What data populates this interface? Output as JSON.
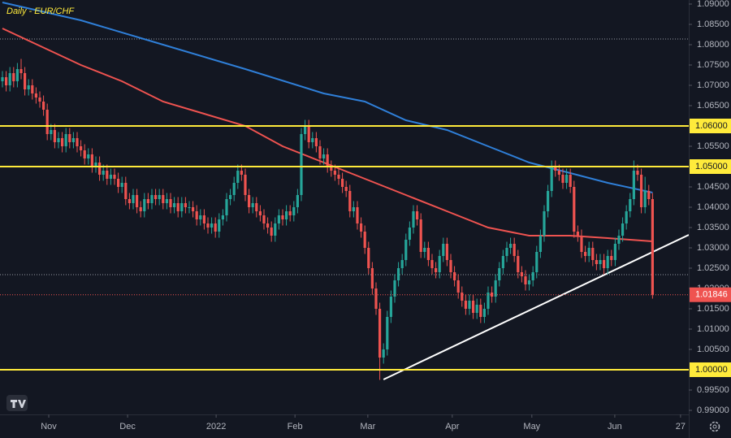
{
  "chart_data": {
    "type": "candlestick",
    "title": "Daily - EUR/CHF",
    "title_color": "#ffeb3b",
    "up_color": "#26a69a",
    "down_color": "#ef5350",
    "xlim": [
      -0.65,
      183.7
    ],
    "ylim": [
      0.989,
      1.091
    ],
    "xticks": [
      {
        "value": 12.4,
        "label": "Nov"
      },
      {
        "value": 33.5,
        "label": "Dec"
      },
      {
        "value": 57.2,
        "label": "2022"
      },
      {
        "value": 78.3,
        "label": "Feb"
      },
      {
        "value": 97.8,
        "label": "Mar"
      },
      {
        "value": 120.4,
        "label": "Apr"
      },
      {
        "value": 141.7,
        "label": "May"
      },
      {
        "value": 163.9,
        "label": "Jun"
      },
      {
        "value": 181.5,
        "label": "27"
      }
    ],
    "yticks": [
      {
        "value": 1.09,
        "label": "1.09000"
      },
      {
        "value": 1.085,
        "label": "1.08500"
      },
      {
        "value": 1.08,
        "label": "1.08000"
      },
      {
        "value": 1.075,
        "label": "1.07500"
      },
      {
        "value": 1.07,
        "label": "1.07000"
      },
      {
        "value": 1.065,
        "label": "1.06500"
      },
      {
        "value": 1.055,
        "label": "1.05500"
      },
      {
        "value": 1.045,
        "label": "1.04500"
      },
      {
        "value": 1.04,
        "label": "1.04000"
      },
      {
        "value": 1.035,
        "label": "1.03500"
      },
      {
        "value": 1.03,
        "label": "1.03000"
      },
      {
        "value": 1.025,
        "label": "1.02500"
      },
      {
        "value": 1.02,
        "label": "1.02000"
      },
      {
        "value": 1.015,
        "label": "1.01500"
      },
      {
        "value": 1.01,
        "label": "1.01000"
      },
      {
        "value": 1.005,
        "label": "1.00500"
      },
      {
        "value": 0.995,
        "label": "0.99500"
      },
      {
        "value": 0.99,
        "label": "0.99000"
      }
    ],
    "open": [
      1.071,
      1.072,
      1.07,
      1.073,
      1.071,
      1.074,
      1.073,
      1.069,
      1.07,
      1.068,
      1.067,
      1.066,
      1.064,
      1.058,
      1.059,
      1.056,
      1.057,
      1.055,
      1.058,
      1.056,
      1.057,
      1.055,
      1.054,
      1.052,
      1.053,
      1.05,
      1.051,
      1.048,
      1.049,
      1.047,
      1.048,
      1.047,
      1.045,
      1.046,
      1.042,
      1.041,
      1.043,
      1.04,
      1.039,
      1.042,
      1.041,
      1.043,
      1.042,
      1.043,
      1.041,
      1.042,
      1.04,
      1.041,
      1.039,
      1.041,
      1.04,
      1.04,
      1.039,
      1.037,
      1.038,
      1.036,
      1.035,
      1.036,
      1.034,
      1.037,
      1.038,
      1.042,
      1.043,
      1.046,
      1.049,
      1.048,
      1.043,
      1.04,
      1.041,
      1.039,
      1.038,
      1.036,
      1.035,
      1.033,
      1.036,
      1.038,
      1.037,
      1.039,
      1.038,
      1.04,
      1.043,
      1.058,
      1.06,
      1.056,
      1.057,
      1.055,
      1.052,
      1.053,
      1.05,
      1.049,
      1.048,
      1.047,
      1.045,
      1.044,
      1.039,
      1.04,
      1.036,
      1.034,
      1.03,
      1.025,
      1.02,
      1.015,
      1.003,
      1.005,
      1.013,
      1.018,
      1.022,
      1.025,
      1.027,
      1.032,
      1.035,
      1.039,
      1.037,
      1.029,
      1.03,
      1.027,
      1.025,
      1.024,
      1.028,
      1.031,
      1.027,
      1.024,
      1.022,
      1.019,
      1.017,
      1.015,
      1.017,
      1.014,
      1.016,
      1.013,
      1.015,
      1.019,
      1.018,
      1.022,
      1.025,
      1.028,
      1.03,
      1.031,
      1.028,
      1.024,
      1.023,
      1.021,
      1.022,
      1.024,
      1.029,
      1.033,
      1.039,
      1.044,
      1.05,
      1.049,
      1.048,
      1.046,
      1.048,
      1.045,
      1.034,
      1.033,
      1.029,
      1.028,
      1.03,
      1.027,
      1.026,
      1.027,
      1.025,
      1.028,
      1.027,
      1.031,
      1.033,
      1.036,
      1.039,
      1.042,
      1.049,
      1.048,
      1.04,
      1.044,
      1.042
    ],
    "high": [
      1.0735,
      1.0735,
      1.0745,
      1.0745,
      1.0755,
      1.0765,
      1.0745,
      1.0715,
      1.0715,
      1.0695,
      1.0685,
      1.0675,
      1.0655,
      1.0605,
      1.0605,
      1.0585,
      1.0585,
      1.0595,
      1.0595,
      1.0585,
      1.0585,
      1.0565,
      1.0555,
      1.0545,
      1.0545,
      1.0525,
      1.0525,
      1.0505,
      1.0505,
      1.0495,
      1.0495,
      1.0485,
      1.0475,
      1.0475,
      1.0435,
      1.0445,
      1.0445,
      1.0415,
      1.0435,
      1.0435,
      1.0445,
      1.0445,
      1.0445,
      1.0445,
      1.0435,
      1.0435,
      1.0425,
      1.0425,
      1.0425,
      1.0425,
      1.0415,
      1.0415,
      1.0405,
      1.0395,
      1.0395,
      1.0375,
      1.0375,
      1.0375,
      1.0385,
      1.0395,
      1.0435,
      1.0445,
      1.0475,
      1.0505,
      1.0505,
      1.0495,
      1.0445,
      1.0425,
      1.0425,
      1.0405,
      1.0395,
      1.0375,
      1.0365,
      1.0375,
      1.0395,
      1.0395,
      1.0405,
      1.0405,
      1.0415,
      1.0445,
      1.0595,
      1.0615,
      1.0615,
      1.0585,
      1.0585,
      1.0565,
      1.0545,
      1.0545,
      1.0515,
      1.0505,
      1.0495,
      1.0485,
      1.0465,
      1.0455,
      1.0415,
      1.0415,
      1.0375,
      1.0355,
      1.0315,
      1.0265,
      1.0215,
      1.0165,
      1.0065,
      1.0145,
      1.0195,
      1.0235,
      1.0265,
      1.0285,
      1.0335,
      1.0365,
      1.0405,
      1.0405,
      1.0385,
      1.0315,
      1.0315,
      1.0285,
      1.0265,
      1.0295,
      1.0325,
      1.0325,
      1.0285,
      1.0255,
      1.0235,
      1.0205,
      1.0185,
      1.0185,
      1.0185,
      1.0175,
      1.0175,
      1.0165,
      1.0205,
      1.0205,
      1.0235,
      1.0265,
      1.0295,
      1.0315,
      1.0325,
      1.0325,
      1.0295,
      1.0255,
      1.0245,
      1.0235,
      1.0255,
      1.0305,
      1.0345,
      1.0405,
      1.0455,
      1.0515,
      1.0515,
      1.0505,
      1.0495,
      1.0495,
      1.0495,
      1.0465,
      1.0355,
      1.0345,
      1.0305,
      1.0315,
      1.0315,
      1.0285,
      1.0285,
      1.0285,
      1.0295,
      1.0295,
      1.0325,
      1.0345,
      1.0375,
      1.0405,
      1.0435,
      1.0515,
      1.0505,
      1.0495,
      1.0475,
      1.0455,
      1.0435
    ],
    "low": [
      1.0695,
      1.0685,
      1.0685,
      1.0695,
      1.0695,
      1.0715,
      1.0675,
      1.0675,
      1.0665,
      1.0655,
      1.0645,
      1.0625,
      1.0565,
      1.0565,
      1.0545,
      1.0545,
      1.0535,
      1.0535,
      1.0545,
      1.0545,
      1.0535,
      1.0525,
      1.0505,
      1.0505,
      1.0485,
      1.0485,
      1.0465,
      1.0465,
      1.0455,
      1.0455,
      1.0455,
      1.0435,
      1.0435,
      1.0405,
      1.0395,
      1.0395,
      1.0385,
      1.0375,
      1.0375,
      1.0395,
      1.0395,
      1.0405,
      1.0405,
      1.0395,
      1.0395,
      1.0385,
      1.0385,
      1.0375,
      1.0375,
      1.0385,
      1.0385,
      1.0375,
      1.0355,
      1.0355,
      1.0345,
      1.0335,
      1.0335,
      1.0325,
      1.0325,
      1.0355,
      1.0365,
      1.0405,
      1.0415,
      1.0445,
      1.0465,
      1.0415,
      1.0385,
      1.0385,
      1.0375,
      1.0365,
      1.0345,
      1.0335,
      1.0315,
      1.0315,
      1.0345,
      1.0355,
      1.0355,
      1.0365,
      1.0365,
      1.0385,
      1.0415,
      1.0565,
      1.0545,
      1.0545,
      1.0535,
      1.0505,
      1.0505,
      1.0485,
      1.0475,
      1.0465,
      1.0455,
      1.0435,
      1.0425,
      1.0375,
      1.0375,
      1.0345,
      1.0325,
      1.0285,
      1.0235,
      1.0185,
      1.0135,
      0.9975,
      1.0015,
      1.0035,
      1.0115,
      1.0165,
      1.0205,
      1.0235,
      1.0255,
      1.0305,
      1.0335,
      1.0355,
      1.0275,
      1.0275,
      1.0255,
      1.0235,
      1.0225,
      1.0225,
      1.0265,
      1.0255,
      1.0225,
      1.0205,
      1.0175,
      1.0155,
      1.0135,
      1.0135,
      1.0125,
      1.0125,
      1.0115,
      1.0115,
      1.0135,
      1.0165,
      1.0165,
      1.0205,
      1.0235,
      1.0265,
      1.0285,
      1.0265,
      1.0225,
      1.0215,
      1.0195,
      1.0195,
      1.0205,
      1.0225,
      1.0275,
      1.0315,
      1.0375,
      1.0425,
      1.0475,
      1.0465,
      1.0445,
      1.0445,
      1.0435,
      1.0325,
      1.0315,
      1.0275,
      1.0265,
      1.0265,
      1.0255,
      1.0245,
      1.0245,
      1.0235,
      1.0235,
      1.0255,
      1.0255,
      1.0295,
      1.0315,
      1.0345,
      1.0375,
      1.0405,
      1.0465,
      1.0385,
      1.0385,
      1.0405,
      1.0175
    ],
    "close": [
      1.072,
      1.07,
      1.073,
      1.071,
      1.074,
      1.073,
      1.069,
      1.07,
      1.068,
      1.067,
      1.066,
      1.064,
      1.058,
      1.059,
      1.056,
      1.057,
      1.055,
      1.058,
      1.056,
      1.057,
      1.055,
      1.054,
      1.052,
      1.053,
      1.05,
      1.051,
      1.048,
      1.049,
      1.047,
      1.048,
      1.047,
      1.045,
      1.046,
      1.042,
      1.041,
      1.043,
      1.04,
      1.039,
      1.042,
      1.041,
      1.043,
      1.042,
      1.043,
      1.041,
      1.042,
      1.04,
      1.041,
      1.039,
      1.041,
      1.04,
      1.04,
      1.039,
      1.037,
      1.038,
      1.036,
      1.035,
      1.036,
      1.034,
      1.037,
      1.038,
      1.042,
      1.043,
      1.046,
      1.049,
      1.048,
      1.043,
      1.04,
      1.041,
      1.039,
      1.038,
      1.036,
      1.035,
      1.033,
      1.036,
      1.038,
      1.037,
      1.039,
      1.038,
      1.04,
      1.043,
      1.058,
      1.06,
      1.056,
      1.057,
      1.055,
      1.052,
      1.053,
      1.05,
      1.049,
      1.048,
      1.047,
      1.045,
      1.044,
      1.039,
      1.04,
      1.036,
      1.034,
      1.03,
      1.025,
      1.02,
      1.015,
      1.003,
      1.005,
      1.013,
      1.018,
      1.022,
      1.025,
      1.027,
      1.032,
      1.035,
      1.039,
      1.037,
      1.029,
      1.03,
      1.027,
      1.025,
      1.024,
      1.028,
      1.031,
      1.027,
      1.024,
      1.022,
      1.019,
      1.017,
      1.015,
      1.017,
      1.014,
      1.016,
      1.013,
      1.015,
      1.019,
      1.018,
      1.022,
      1.025,
      1.028,
      1.03,
      1.031,
      1.028,
      1.024,
      1.023,
      1.021,
      1.022,
      1.024,
      1.029,
      1.033,
      1.039,
      1.044,
      1.05,
      1.049,
      1.048,
      1.046,
      1.048,
      1.045,
      1.034,
      1.033,
      1.029,
      1.028,
      1.03,
      1.027,
      1.026,
      1.027,
      1.025,
      1.028,
      1.027,
      1.031,
      1.033,
      1.036,
      1.039,
      1.042,
      1.049,
      1.048,
      1.04,
      1.044,
      1.042,
      1.01846
    ],
    "lines": [
      {
        "color": "#2f7fd8",
        "x": [
          0,
          21,
          43,
          65,
          86,
          97,
          108,
          119,
          130,
          141,
          152,
          162,
          174
        ],
        "values": [
          1.0904,
          1.086,
          1.08,
          1.074,
          1.068,
          1.066,
          1.0614,
          1.059,
          1.055,
          1.051,
          1.0484,
          1.046,
          1.0436
        ]
      },
      {
        "color": "#ef5350",
        "x": [
          0,
          21,
          32,
          43,
          54,
          65,
          75,
          86,
          97,
          108,
          119,
          130,
          141,
          152,
          162,
          174
        ],
        "values": [
          1.084,
          1.075,
          1.071,
          1.066,
          1.063,
          1.06,
          1.055,
          1.051,
          1.047,
          1.043,
          1.039,
          1.035,
          1.033,
          1.033,
          1.0324,
          1.0316
        ]
      },
      {
        "color": "#ffffff",
        "x": [
          102,
          183.7
        ],
        "values": [
          0.9976,
          1.0332
        ]
      }
    ],
    "levels": [
      {
        "value": 1.06,
        "label": "1.06000",
        "color": "#ffeb3b",
        "style": "solid"
      },
      {
        "value": 1.05,
        "label": "1.05000",
        "color": "#ffeb3b",
        "style": "solid"
      },
      {
        "value": 1.0,
        "label": "1.00000",
        "color": "#ffeb3b",
        "style": "solid"
      },
      {
        "value": 1.01846,
        "label": "1.01846",
        "color": "#ef5350",
        "style": "dotted"
      }
    ],
    "dotted_lines": [
      1.0814,
      1.0234
    ]
  }
}
